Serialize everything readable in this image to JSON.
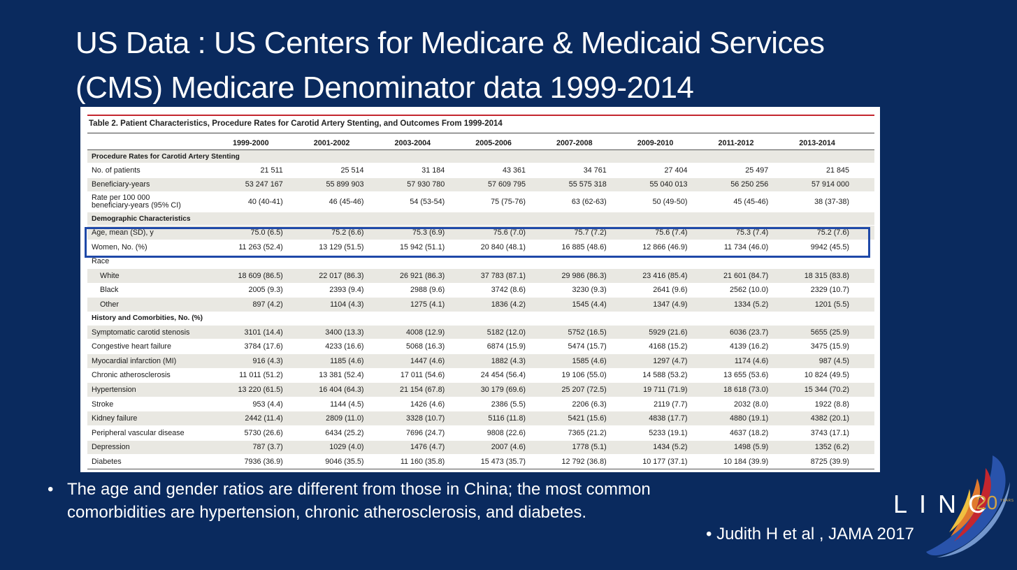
{
  "slide": {
    "title_line1": "US Data  : US Centers for Medicare & Medicaid Services",
    "title_line2": "(CMS) Medicare Denominator data 1999-2014",
    "bullet": "The age and gender ratios are different from those in China; the most common comorbidities are hypertension, chronic atherosclerosis, and diabetes.",
    "bullet_marker": "•",
    "citation": "•  Judith H et al , JAMA 2017",
    "logo_text": "LINC",
    "logo_number": "20",
    "logo_years": "YEARS"
  },
  "colors": {
    "background": "#0a2a5e",
    "highlight_box": "#1f49a8",
    "table_rule": "#c4262e",
    "row_shade": "#e9e8e2",
    "logo_gold": "#d4a544"
  },
  "table": {
    "caption": "Table 2. Patient Characteristics, Procedure Rates for Carotid Artery Stenting, and Outcomes From 1999-2014",
    "columns": [
      "",
      "1999-2000",
      "2001-2002",
      "2003-2004",
      "2005-2006",
      "2007-2008",
      "2009-2010",
      "2011-2012",
      "2013-2014"
    ],
    "sections": {
      "procedure": "Procedure Rates for Carotid Artery Stenting",
      "demographic": "Demographic Characteristics",
      "race": "Race",
      "history": "History and Comorbities, No. (%)"
    },
    "rows": {
      "patients": {
        "label": "No. of patients",
        "values": [
          "21 511",
          "25 514",
          "31 184",
          "43 361",
          "34 761",
          "27 404",
          "25 497",
          "21 845"
        ]
      },
      "beneficiary": {
        "label": "Beneficiary-years",
        "values": [
          "53 247 167",
          "55 899 903",
          "57 930 780",
          "57 609 795",
          "55 575 318",
          "55 040 013",
          "56 250 256",
          "57 914 000"
        ]
      },
      "rate": {
        "label1": "Rate per 100 000",
        "label2": "beneficiary-years (95% CI)",
        "values": [
          "40 (40-41)",
          "46 (45-46)",
          "54 (53-54)",
          "75 (75-76)",
          "63 (62-63)",
          "50 (49-50)",
          "45 (45-46)",
          "38 (37-38)"
        ]
      },
      "age": {
        "label": "Age, mean (SD), y",
        "values": [
          "75.0 (6.5)",
          "75.2 (6.6)",
          "75.3 (6.9)",
          "75.6 (7.0)",
          "75.7 (7.2)",
          "75.6 (7.4)",
          "75.3 (7.4)",
          "75.2 (7.6)"
        ]
      },
      "women": {
        "label": "Women, No. (%)",
        "values": [
          "11 263 (52.4)",
          "13 129 (51.5)",
          "15 942 (51.1)",
          "20 840 (48.1)",
          "16 885 (48.6)",
          "12 866 (46.9)",
          "11 734 (46.0)",
          "9942 (45.5)"
        ]
      },
      "white": {
        "label": "White",
        "values": [
          "18 609 (86.5)",
          "22 017 (86.3)",
          "26 921 (86.3)",
          "37 783 (87.1)",
          "29 986 (86.3)",
          "23 416 (85.4)",
          "21 601 (84.7)",
          "18 315 (83.8)"
        ]
      },
      "black": {
        "label": "Black",
        "values": [
          "2005 (9.3)",
          "2393 (9.4)",
          "2988 (9.6)",
          "3742 (8.6)",
          "3230 (9.3)",
          "2641 (9.6)",
          "2562 (10.0)",
          "2329 (10.7)"
        ]
      },
      "other": {
        "label": "Other",
        "values": [
          "897 (4.2)",
          "1104 (4.3)",
          "1275 (4.1)",
          "1836 (4.2)",
          "1545 (4.4)",
          "1347 (4.9)",
          "1334 (5.2)",
          "1201 (5.5)"
        ]
      },
      "symptomatic": {
        "label": "Symptomatic carotid stenosis",
        "values": [
          "3101 (14.4)",
          "3400 (13.3)",
          "4008 (12.9)",
          "5182 (12.0)",
          "5752 (16.5)",
          "5929 (21.6)",
          "6036 (23.7)",
          "5655 (25.9)"
        ]
      },
      "chf": {
        "label": "Congestive heart failure",
        "values": [
          "3784 (17.6)",
          "4233 (16.6)",
          "5068 (16.3)",
          "6874 (15.9)",
          "5474 (15.7)",
          "4168 (15.2)",
          "4139 (16.2)",
          "3475 (15.9)"
        ]
      },
      "mi": {
        "label": "Myocardial infarction (MI)",
        "values": [
          "916 (4.3)",
          "1185 (4.6)",
          "1447 (4.6)",
          "1882 (4.3)",
          "1585 (4.6)",
          "1297 (4.7)",
          "1174 (4.6)",
          "987 (4.5)"
        ]
      },
      "athero": {
        "label": "Chronic atherosclerosis",
        "values": [
          "11 011 (51.2)",
          "13 381 (52.4)",
          "17 011 (54.6)",
          "24 454 (56.4)",
          "19 106 (55.0)",
          "14 588 (53.2)",
          "13 655 (53.6)",
          "10 824 (49.5)"
        ]
      },
      "hypertension": {
        "label": "Hypertension",
        "values": [
          "13 220 (61.5)",
          "16 404 (64.3)",
          "21 154 (67.8)",
          "30 179 (69.6)",
          "25 207 (72.5)",
          "19 711 (71.9)",
          "18 618 (73.0)",
          "15 344 (70.2)"
        ]
      },
      "stroke": {
        "label": "Stroke",
        "values": [
          "953 (4.4)",
          "1144 (4.5)",
          "1426 (4.6)",
          "2386 (5.5)",
          "2206 (6.3)",
          "2119 (7.7)",
          "2032 (8.0)",
          "1922 (8.8)"
        ]
      },
      "kidney": {
        "label": "Kidney failure",
        "values": [
          "2442 (11.4)",
          "2809 (11.0)",
          "3328 (10.7)",
          "5116 (11.8)",
          "5421 (15.6)",
          "4838 (17.7)",
          "4880 (19.1)",
          "4382 (20.1)"
        ]
      },
      "pvd": {
        "label": "Peripheral vascular disease",
        "values": [
          "5730 (26.6)",
          "6434 (25.2)",
          "7696 (24.7)",
          "9808 (22.6)",
          "7365 (21.2)",
          "5233 (19.1)",
          "4637 (18.2)",
          "3743 (17.1)"
        ]
      },
      "depression": {
        "label": "Depression",
        "values": [
          "787 (3.7)",
          "1029 (4.0)",
          "1476 (4.7)",
          "2007 (4.6)",
          "1778 (5.1)",
          "1434 (5.2)",
          "1498 (5.9)",
          "1352 (6.2)"
        ]
      },
      "diabetes": {
        "label": "Diabetes",
        "values": [
          "7936 (36.9)",
          "9046 (35.5)",
          "11 160 (35.8)",
          "15 473 (35.7)",
          "12 792 (36.8)",
          "10 177 (37.1)",
          "10 184 (39.9)",
          "8725 (39.9)"
        ]
      }
    }
  }
}
